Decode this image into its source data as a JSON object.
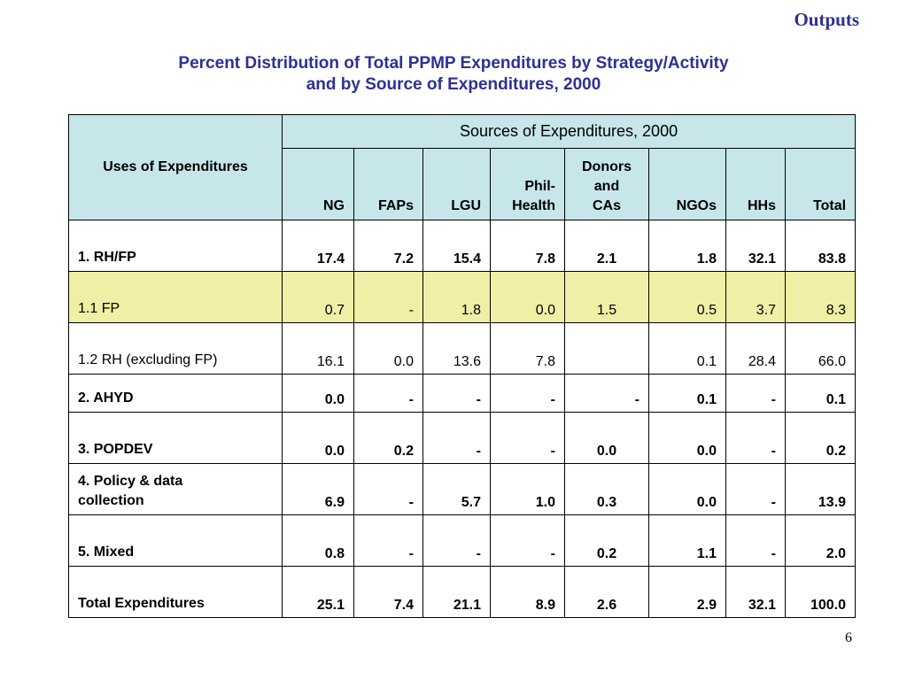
{
  "section_label": "Outputs",
  "title": {
    "line1": "Percent Distribution of Total PPMP Expenditures by Strategy/Activity",
    "line2": "and by Source of Expenditures,  2000"
  },
  "table": {
    "uses_header": "Uses of Expenditures",
    "sources_header": "Sources of Expenditures, 2000",
    "columns": {
      "ng": "NG",
      "faps": "FAPs",
      "lgu": "LGU",
      "philhealth_1": "Phil-",
      "philhealth_2": "Health",
      "donors_1": "Donors",
      "donors_2": "and",
      "donors_3": "CAs",
      "ngos": "NGOs",
      "hhs": "HHs",
      "total": "Total"
    },
    "rows": [
      {
        "label": "1.  RH/FP",
        "values": [
          "17.4",
          "7.2",
          "15.4",
          "7.8",
          "2.1",
          "1.8",
          "32.1",
          "83.8"
        ]
      },
      {
        "label": "1.1  FP",
        "values": [
          "0.7",
          "-",
          "1.8",
          "0.0",
          "1.5",
          "0.5",
          "3.7",
          "8.3"
        ]
      },
      {
        "label": "1.2  RH  (excluding FP)",
        "values": [
          "16.1",
          "0.0",
          "13.6",
          "7.8",
          "",
          "0.1",
          "28.4",
          "66.0"
        ]
      },
      {
        "label": "2.  AHYD",
        "values": [
          "0.0",
          "-",
          "-",
          "-",
          "-",
          "0.1",
          "-",
          "0.1"
        ]
      },
      {
        "label": "3.  POPDEV",
        "values": [
          "0.0",
          "0.2",
          "-",
          "-",
          "0.0",
          "0.0",
          "-",
          "0.2"
        ]
      },
      {
        "label_1": "4.  Policy & data",
        "label_2": "collection",
        "values": [
          "6.9",
          "-",
          "5.7",
          "1.0",
          "0.3",
          "0.0",
          "-",
          "13.9"
        ]
      },
      {
        "label": "5.  Mixed",
        "values": [
          "0.8",
          "-",
          "-",
          "-",
          "0.2",
          "1.1",
          "-",
          "2.0"
        ]
      },
      {
        "label": "Total Expenditures",
        "values": [
          "25.1",
          "7.4",
          "21.1",
          "8.9",
          "2.6",
          "2.9",
          "32.1",
          "100.0"
        ]
      }
    ]
  },
  "page_number": "6",
  "colors": {
    "title": "#2e3192",
    "header_bg": "#c6e6ea",
    "highlight_row_bg": "#efefa6"
  }
}
